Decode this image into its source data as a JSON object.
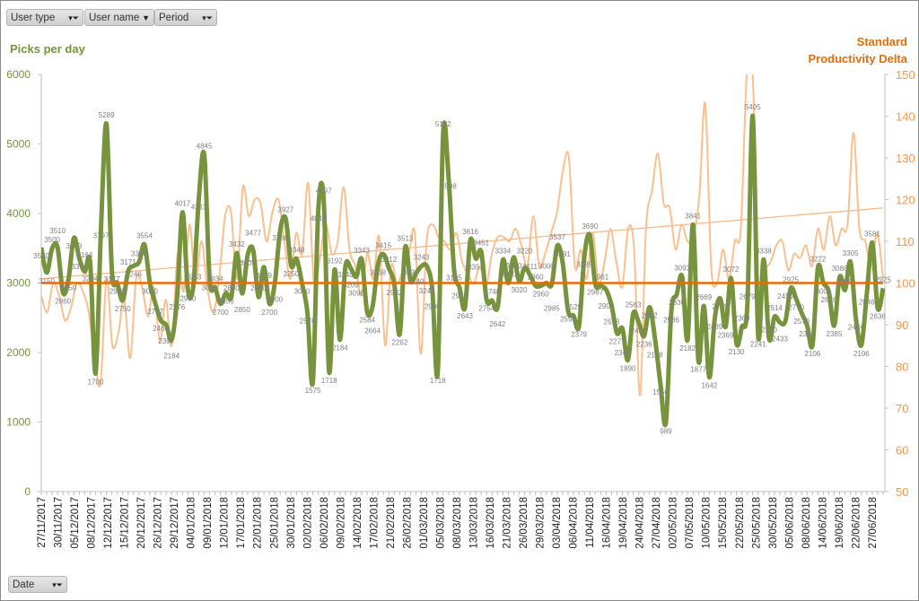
{
  "filters": {
    "user_type": "User type",
    "user_name": "User name",
    "period": "Period",
    "date": "Date"
  },
  "icons": {
    "filter": "funnel-filter-icon",
    "dropdown": "chevron-down-icon"
  },
  "colors": {
    "picks": "#77933c",
    "delta": "#fac090",
    "standard": "#e46c0a",
    "trend": "#f9b98a",
    "left_axis": "#77933c",
    "right_axis": "#f79646"
  },
  "chart_data": {
    "type": "line",
    "left_title": "Picks per day",
    "right_title_line1": "Standard",
    "right_title_line2": "Productivity Delta",
    "ylim": [
      0,
      6000
    ],
    "yticks": [
      0,
      1000,
      2000,
      3000,
      4000,
      5000,
      6000
    ],
    "y2lim": [
      50,
      150
    ],
    "y2ticks": [
      50,
      60,
      70,
      80,
      90,
      100,
      110,
      120,
      130,
      140,
      150
    ],
    "x_tick_labels": [
      "27/11/2017",
      "30/11/2017",
      "05/12/2017",
      "08/12/2017",
      "12/12/2017",
      "15/12/2017",
      "20/12/2017",
      "26/12/2017",
      "29/12/2017",
      "04/01/2018",
      "09/01/2018",
      "12/01/2018",
      "17/01/2018",
      "22/01/2018",
      "25/01/2018",
      "30/01/2018",
      "02/02/2018",
      "06/02/2018",
      "09/02/2018",
      "14/02/2018",
      "17/02/2018",
      "21/02/2018",
      "26/02/2018",
      "01/03/2018",
      "05/03/2018",
      "08/03/2018",
      "13/03/2018",
      "16/03/2018",
      "21/03/2018",
      "26/03/2018",
      "29/03/2018",
      "03/04/2018",
      "06/04/2018",
      "11/04/2018",
      "16/04/2018",
      "19/04/2018",
      "24/04/2018",
      "27/04/2018",
      "02/05/2018",
      "07/05/2018",
      "10/05/2018",
      "15/05/2018",
      "22/05/2018",
      "25/05/2018",
      "30/05/2018",
      "05/06/2018",
      "08/06/2018",
      "14/06/2018",
      "19/06/2018",
      "22/06/2018",
      "27/06/2018"
    ],
    "series": [
      {
        "name": "Picks per day",
        "axis": "left",
        "values": [
          3510,
          3150,
          3500,
          3510,
          2860,
          3050,
          3649,
          3354,
          3164,
          3294,
          1700,
          3797,
          5289,
          3177,
          2998,
          2750,
          3171,
          3246,
          3300,
          3554,
          3000,
          2707,
          2463,
          2397,
          2184,
          2776,
          4017,
          2900,
          2963,
          4211,
          4845,
          3049,
          2934,
          2700,
          2856,
          2800,
          3432,
          2850,
          3405,
          3477,
          2800,
          3229,
          2700,
          3000,
          3766,
          3927,
          3250,
          3348,
          3000,
          2576,
          1575,
          4048,
          4197,
          1718,
          3192,
          2184,
          3240,
          3209,
          3090,
          3343,
          2584,
          2664,
          3268,
          3415,
          3212,
          2982,
          2262,
          3513,
          3027,
          3140,
          3243,
          3241,
          2900,
          1718,
          5162,
          4508,
          3195,
          2936,
          2643,
          3616,
          3351,
          3451,
          2754,
          2748,
          2642,
          3334,
          3000,
          3370,
          3020,
          3220,
          3111,
          2960,
          2960,
          3000,
          2985,
          3537,
          3291,
          2598,
          2529,
          2379,
          3385,
          3690,
          2987,
          2961,
          2903,
          2678,
          2277,
          2346,
          1890,
          2563,
          2433,
          2236,
          2652,
          2198,
          1550,
          989,
          2586,
          2836,
          3093,
          2182,
          3841,
          1877,
          2669,
          1642,
          2489,
          2779,
          2369,
          3072,
          2130,
          2369,
          2679,
          5405,
          2241,
          3338,
          2200,
          2514,
          2433,
          2450,
          2925,
          2770,
          2570,
          2390,
          2106,
          3222,
          3001,
          2876,
          2385,
          3086,
          2900,
          3305,
          2484,
          2106,
          2846,
          3581,
          2636,
          2925
        ]
      },
      {
        "name": "Productivity Delta",
        "axis": "right",
        "values": [
          97,
          93,
          100,
          97,
          91,
          94,
          100,
          98,
          93,
          82,
          76,
          101,
          85,
          88,
          96,
          82,
          101,
          99,
          92,
          99,
          86,
          96,
          85,
          107,
          98,
          114,
          100,
          110,
          99,
          93,
          101,
          116,
          117,
          101,
          123,
          116,
          120,
          119,
          110,
          117,
          120,
          110,
          101,
          112,
          107,
          124,
          100,
          106,
          114,
          107,
          110,
          123,
          108,
          104,
          97,
          107,
          101,
          111,
          85,
          104,
          100,
          103,
          107,
          112,
          83,
          110,
          114,
          111,
          110,
          108,
          112,
          105,
          102,
          100,
          104,
          99,
          107,
          111,
          111,
          110,
          113,
          109,
          104,
          116,
          104,
          107,
          112,
          117,
          127,
          130,
          104,
          108,
          101,
          112,
          100,
          105,
          113,
          105,
          99,
          113,
          108,
          73,
          113,
          122,
          131,
          119,
          118,
          108,
          114,
          110,
          111,
          121,
          143,
          104,
          100,
          108,
          101,
          110,
          113,
          150,
          150,
          98,
          103,
          105,
          109,
          110,
          103,
          107,
          106,
          109,
          104,
          113,
          108,
          116,
          109,
          113,
          114,
          136,
          113,
          110,
          104,
          112,
          101
        ]
      },
      {
        "name": "Standard",
        "axis": "right",
        "values": [
          100,
          100
        ]
      },
      {
        "name": "Delta trend",
        "axis": "right",
        "values": [
          101,
          118
        ]
      }
    ]
  }
}
